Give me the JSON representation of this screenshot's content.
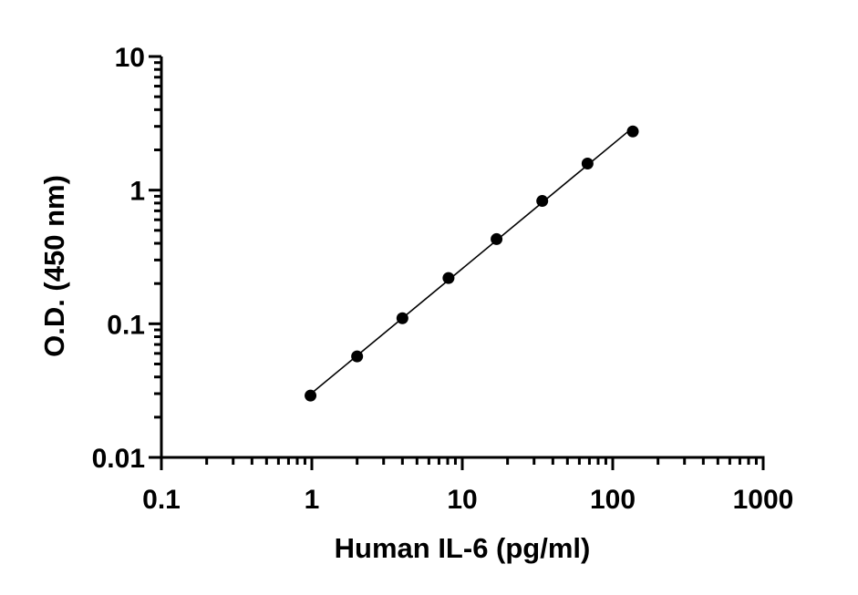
{
  "chart_data": {
    "type": "scatter",
    "title": "",
    "xlabel": "Human IL-6 (pg/ml)",
    "ylabel": "O.D. (450 nm)",
    "xscale": "log",
    "yscale": "log",
    "xlim": [
      0.1,
      1000
    ],
    "ylim": [
      0.01,
      10
    ],
    "x_ticks": [
      "0.1",
      "1",
      "10",
      "100",
      "1000"
    ],
    "y_ticks": [
      "0.01",
      "0.1",
      "1",
      "10"
    ],
    "grid": false,
    "legend": "none",
    "series": [
      {
        "marker": "circle",
        "line": "fit",
        "color": "#000000",
        "x": [
          0.98,
          2.0,
          4.0,
          8.1,
          16.9,
          34.0,
          68.0,
          136.0
        ],
        "y": [
          0.029,
          0.057,
          0.11,
          0.22,
          0.43,
          0.83,
          1.58,
          2.75
        ]
      }
    ]
  }
}
